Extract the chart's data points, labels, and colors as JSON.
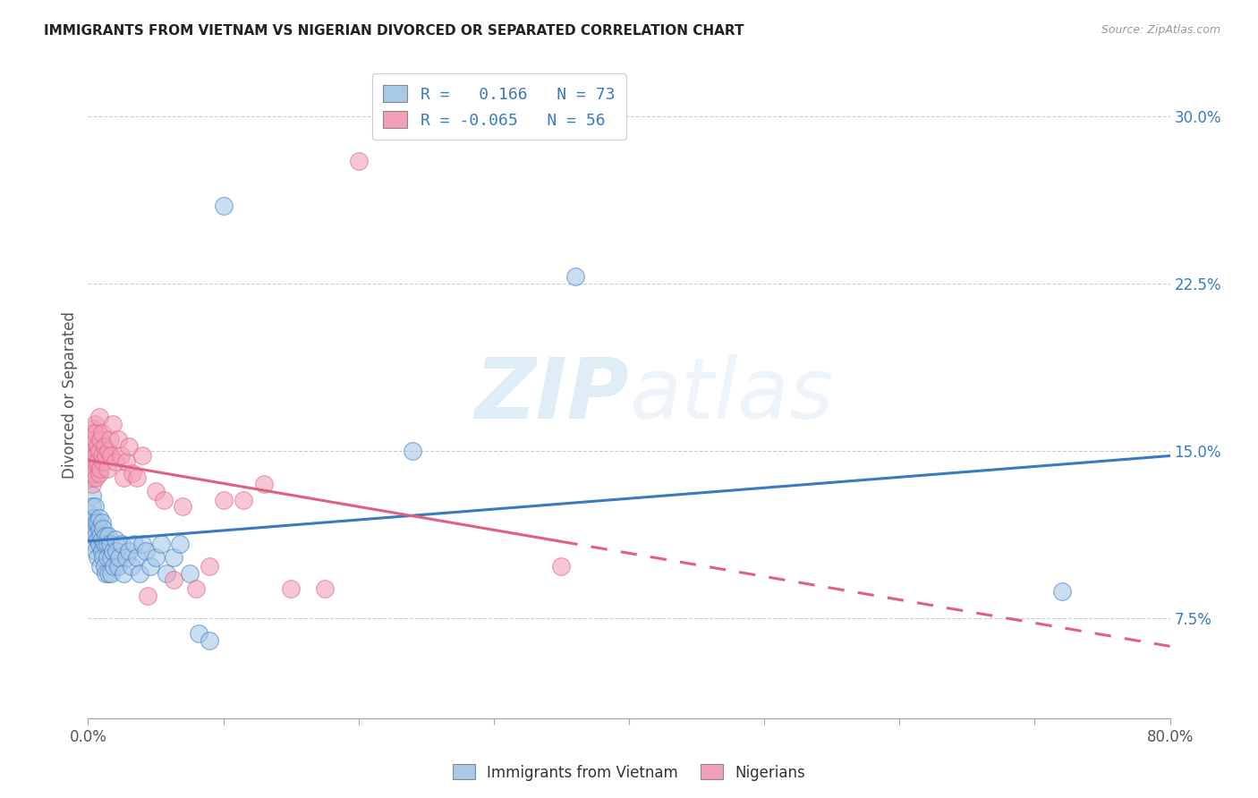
{
  "title": "IMMIGRANTS FROM VIETNAM VS NIGERIAN DIVORCED OR SEPARATED CORRELATION CHART",
  "source": "Source: ZipAtlas.com",
  "xlim": [
    0.0,
    0.8
  ],
  "ylim": [
    0.03,
    0.32
  ],
  "color_blue": "#a8c8e8",
  "color_pink": "#f2a0b8",
  "line_blue": "#3a7abf",
  "line_pink": "#e06080",
  "watermark": "ZIPatlas",
  "vietnam_x": [
    0.001,
    0.002,
    0.002,
    0.003,
    0.003,
    0.004,
    0.004,
    0.004,
    0.005,
    0.005,
    0.005,
    0.006,
    0.006,
    0.006,
    0.007,
    0.007,
    0.007,
    0.008,
    0.008,
    0.008,
    0.009,
    0.009,
    0.01,
    0.01,
    0.01,
    0.011,
    0.011,
    0.012,
    0.012,
    0.013,
    0.013,
    0.014,
    0.014,
    0.015,
    0.015,
    0.016,
    0.017,
    0.017,
    0.018,
    0.019,
    0.02,
    0.021,
    0.022,
    0.023,
    0.025,
    0.026,
    0.028,
    0.03,
    0.032,
    0.034,
    0.036,
    0.038,
    0.04,
    0.043,
    0.046,
    0.05,
    0.054,
    0.058,
    0.063,
    0.068,
    0.075,
    0.082,
    0.09,
    0.1,
    0.24,
    0.36,
    0.72
  ],
  "vietnam_y": [
    0.122,
    0.14,
    0.118,
    0.13,
    0.125,
    0.138,
    0.112,
    0.12,
    0.108,
    0.125,
    0.115,
    0.118,
    0.105,
    0.112,
    0.11,
    0.118,
    0.102,
    0.115,
    0.108,
    0.12,
    0.098,
    0.112,
    0.105,
    0.118,
    0.11,
    0.102,
    0.115,
    0.108,
    0.098,
    0.112,
    0.095,
    0.108,
    0.102,
    0.112,
    0.095,
    0.108,
    0.102,
    0.095,
    0.105,
    0.098,
    0.11,
    0.105,
    0.098,
    0.102,
    0.108,
    0.095,
    0.102,
    0.105,
    0.098,
    0.108,
    0.102,
    0.095,
    0.108,
    0.105,
    0.098,
    0.102,
    0.108,
    0.095,
    0.102,
    0.108,
    0.095,
    0.068,
    0.065,
    0.26,
    0.15,
    0.228,
    0.087
  ],
  "nigeria_x": [
    0.001,
    0.001,
    0.002,
    0.002,
    0.003,
    0.003,
    0.003,
    0.004,
    0.004,
    0.004,
    0.005,
    0.005,
    0.005,
    0.006,
    0.006,
    0.006,
    0.007,
    0.007,
    0.008,
    0.008,
    0.008,
    0.009,
    0.009,
    0.01,
    0.01,
    0.011,
    0.012,
    0.013,
    0.014,
    0.015,
    0.016,
    0.017,
    0.018,
    0.02,
    0.022,
    0.024,
    0.026,
    0.028,
    0.03,
    0.033,
    0.036,
    0.04,
    0.044,
    0.05,
    0.056,
    0.063,
    0.07,
    0.08,
    0.09,
    0.1,
    0.115,
    0.13,
    0.15,
    0.175,
    0.2,
    0.35
  ],
  "nigeria_y": [
    0.148,
    0.138,
    0.142,
    0.152,
    0.135,
    0.148,
    0.158,
    0.14,
    0.15,
    0.16,
    0.145,
    0.155,
    0.162,
    0.138,
    0.148,
    0.158,
    0.145,
    0.152,
    0.14,
    0.15,
    0.165,
    0.142,
    0.155,
    0.148,
    0.158,
    0.145,
    0.152,
    0.148,
    0.142,
    0.15,
    0.155,
    0.148,
    0.162,
    0.145,
    0.155,
    0.148,
    0.138,
    0.145,
    0.152,
    0.14,
    0.138,
    0.148,
    0.085,
    0.132,
    0.128,
    0.092,
    0.125,
    0.088,
    0.098,
    0.128,
    0.128,
    0.135,
    0.088,
    0.088,
    0.28,
    0.098
  ]
}
